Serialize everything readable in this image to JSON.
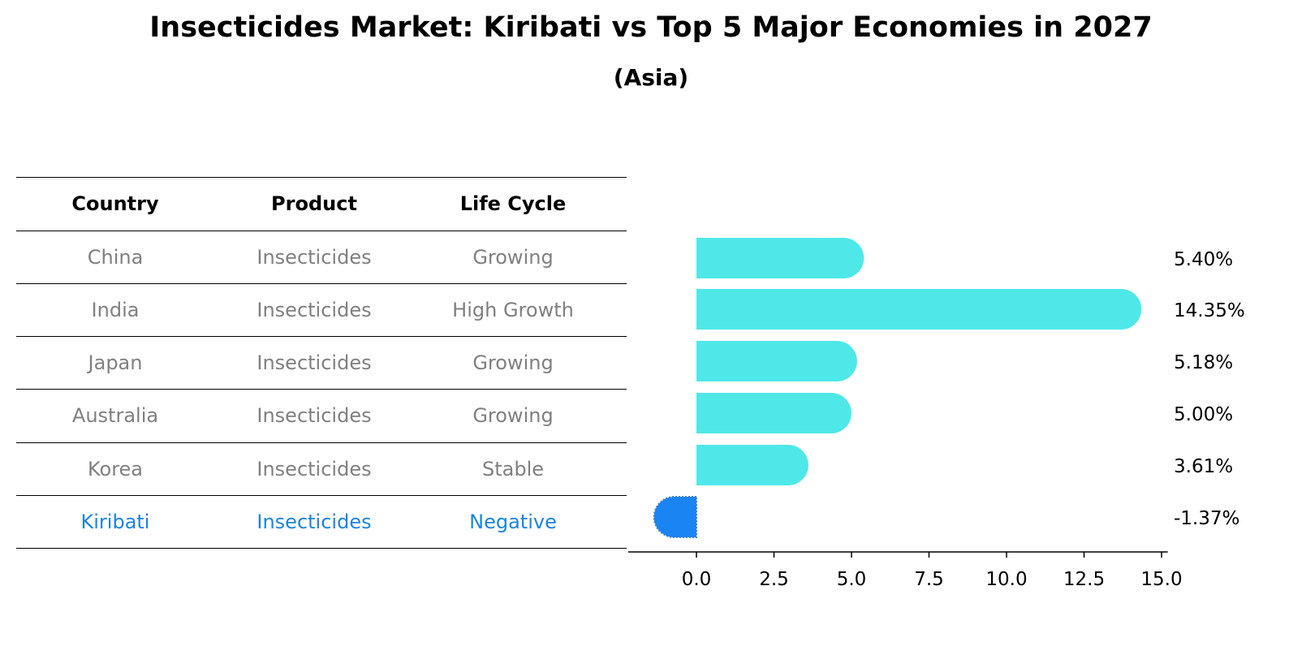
{
  "title": "Insecticides Market: Kiribati vs Top 5 Major Economies in 2027",
  "subtitle": "(Asia)",
  "colors": {
    "bar": "#4ee8e8",
    "highlight": "#1a84f2",
    "table_text": "#808080",
    "highlight_text": "#1a84e6"
  },
  "table": {
    "headers": [
      "Country",
      "Product",
      "Life Cycle"
    ],
    "rows": [
      [
        "China",
        "Insecticides",
        "Growing"
      ],
      [
        "India",
        "Insecticides",
        "High Growth"
      ],
      [
        "Japan",
        "Insecticides",
        "Growing"
      ],
      [
        "Australia",
        "Insecticides",
        "Growing"
      ],
      [
        "Korea",
        "Insecticides",
        "Stable"
      ],
      [
        "Kiribati",
        "Insecticides",
        "Negative"
      ]
    ],
    "highlight_row": 5
  },
  "chart_data": {
    "type": "bar",
    "orientation": "horizontal",
    "categories": [
      "China",
      "India",
      "Japan",
      "Australia",
      "Korea",
      "Kiribati"
    ],
    "values": [
      5.4,
      14.35,
      5.18,
      5.0,
      3.61,
      -1.37
    ],
    "value_labels": [
      "5.40%",
      "14.35%",
      "5.18%",
      "5.00%",
      "3.61%",
      "-1.37%"
    ],
    "highlight_category": "Kiribati",
    "xlim": [
      -2.2,
      15.2
    ],
    "xticks": [
      0.0,
      2.5,
      5.0,
      7.5,
      10.0,
      12.5,
      15.0
    ],
    "xtick_labels": [
      "0.0",
      "2.5",
      "5.0",
      "7.5",
      "10.0",
      "12.5",
      "15.0"
    ],
    "grid": false
  }
}
